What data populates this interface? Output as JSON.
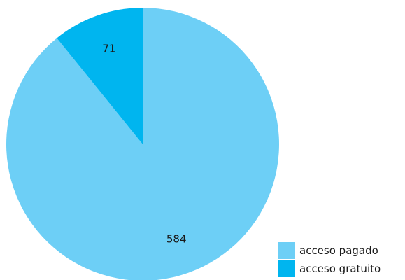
{
  "chart_data": {
    "type": "pie",
    "title": "",
    "start_angle": "12 o'clock",
    "direction": "clockwise",
    "slices": [
      {
        "label": "acceso pagado",
        "value": 584,
        "color": "#6dcff6"
      },
      {
        "label": "acceso gratuito",
        "value": 71,
        "color": "#00b5ef"
      }
    ],
    "legend_position": "bottom-right",
    "data_labels": [
      "584",
      "71"
    ]
  }
}
